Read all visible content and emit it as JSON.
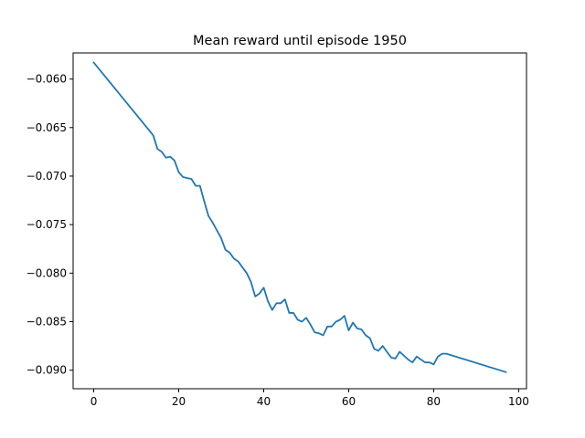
{
  "chart_data": {
    "type": "line",
    "title": "Mean reward until episode 1950",
    "xlabel": "",
    "ylabel": "",
    "xlim": [
      -4.85,
      101.85
    ],
    "ylim": [
      -0.09191,
      -0.05731
    ],
    "xticks": [
      0,
      20,
      40,
      60,
      80,
      100
    ],
    "yticks": [
      -0.09,
      -0.085,
      -0.08,
      -0.075,
      -0.07,
      -0.065,
      -0.06
    ],
    "ytick_labels": [
      "−0.090",
      "−0.085",
      "−0.080",
      "−0.075",
      "−0.070",
      "−0.065",
      "−0.060"
    ],
    "grid": false,
    "line_color": "#1f77b4",
    "series": [
      {
        "x": [
          0,
          14,
          15,
          16,
          17,
          18,
          19,
          20,
          21,
          22,
          23,
          24,
          25,
          26,
          27,
          28,
          29,
          30,
          31,
          32,
          33,
          34,
          35,
          36,
          37,
          38,
          39,
          40,
          41,
          42,
          43,
          44,
          45,
          46,
          47,
          48,
          49,
          50,
          51,
          52,
          53,
          54,
          55,
          56,
          57,
          58,
          59,
          60,
          61,
          62,
          63,
          64,
          65,
          66,
          67,
          68,
          69,
          70,
          71,
          72,
          73,
          74,
          75,
          76,
          77,
          78,
          79,
          80,
          81,
          82,
          83,
          97
        ],
        "y": [
          -0.0583,
          -0.0658,
          -0.0672,
          -0.0675,
          -0.0681,
          -0.068,
          -0.0684,
          -0.0696,
          -0.0701,
          -0.0702,
          -0.0703,
          -0.071,
          -0.071,
          -0.0726,
          -0.0741,
          -0.0748,
          -0.0756,
          -0.0764,
          -0.0776,
          -0.0779,
          -0.0785,
          -0.0788,
          -0.0794,
          -0.08,
          -0.0809,
          -0.0824,
          -0.0821,
          -0.0815,
          -0.0829,
          -0.0838,
          -0.0831,
          -0.0831,
          -0.0827,
          -0.0841,
          -0.0841,
          -0.0848,
          -0.085,
          -0.0846,
          -0.0853,
          -0.0861,
          -0.0862,
          -0.0864,
          -0.0855,
          -0.0855,
          -0.085,
          -0.0848,
          -0.0844,
          -0.0859,
          -0.0851,
          -0.0857,
          -0.0858,
          -0.0864,
          -0.0867,
          -0.0878,
          -0.088,
          -0.0875,
          -0.0881,
          -0.0887,
          -0.0888,
          -0.0881,
          -0.0885,
          -0.0889,
          -0.0892,
          -0.0886,
          -0.0889,
          -0.0892,
          -0.0892,
          -0.0894,
          -0.0886,
          -0.0883,
          -0.0883,
          -0.0902
        ]
      }
    ]
  }
}
